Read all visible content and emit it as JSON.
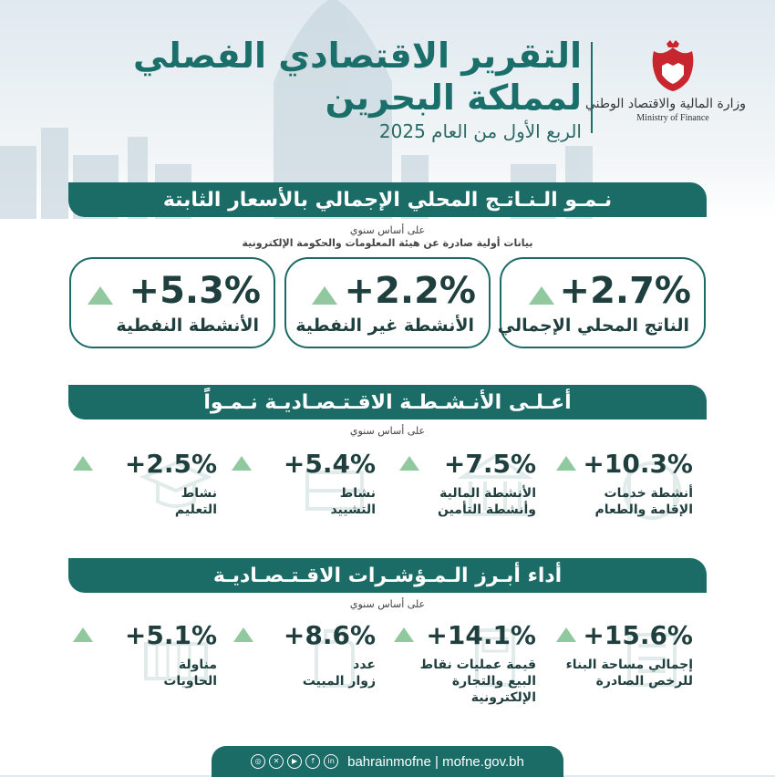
{
  "header": {
    "title_line1": "التقرير الاقتصادي الفصلي",
    "title_line2": "لمملكة البحرين",
    "subtitle": "الربع الأول من العام 2025",
    "ministry_ar": "وزارة المالية والاقتصاد الوطني",
    "ministry_en": "Ministry of Finance"
  },
  "gdp_section": {
    "title": "نـمـو الـنـاتـج المحلي الإجمالي بالأسعار الثابتة",
    "note1": "على أساس سنوي",
    "note2": "بيانات أولية صادرة عن هيئة المعلومات والحكومة الإلكترونية",
    "cards": [
      {
        "value": "+2.7%",
        "label": "الناتج المحلي الإجمالي"
      },
      {
        "value": "+2.2%",
        "label": "الأنشطة غير النفطية"
      },
      {
        "value": "+5.3%",
        "label": "الأنشطة النفطية"
      }
    ]
  },
  "activities_section": {
    "title": "أعـلـى الأنـشـطـة الاقـتـصـاديـة نـمـواً",
    "note": "على أساس سنوي",
    "items": [
      {
        "value": "+10.3%",
        "label_1": "أنشطة خدمات",
        "label_2": "الإقامة والطعام",
        "icon": "restaurant-icon"
      },
      {
        "value": "+7.5%",
        "label_1": "الأنشطة المالية",
        "label_2": "وأنشطة التأمين",
        "icon": "bank-icon"
      },
      {
        "value": "+5.4%",
        "label_1": "نشاط",
        "label_2": "التشييد",
        "icon": "construction-icon"
      },
      {
        "value": "+2.5%",
        "label_1": "نشاط",
        "label_2": "التعليم",
        "icon": "education-icon"
      }
    ]
  },
  "indicators_section": {
    "title": "أداء أبـرز الـمـؤشـرات الاقـتـصـاديـة",
    "note": "على أساس سنوي",
    "items": [
      {
        "value": "+15.6%",
        "label_1": "إجمالي مساحة البناء",
        "label_2": "للرخص الصادرة",
        "icon": "building-icon"
      },
      {
        "value": "+14.1%",
        "label_1": "قيمة عمليات نقاط",
        "label_2": "البيع والتجارة الإلكترونية",
        "icon": "pos-icon"
      },
      {
        "value": "+8.6%",
        "label_1": "عدد",
        "label_2": "زوار المبيت",
        "icon": "luggage-icon"
      },
      {
        "value": "+5.1%",
        "label_1": "مناولة",
        "label_2": "الحاويات",
        "icon": "container-icon"
      }
    ]
  },
  "footer": {
    "text": "bahrainmofne | mofne.gov.bh",
    "icons": [
      "linkedin-icon",
      "facebook-icon",
      "youtube-icon",
      "x-icon",
      "instagram-icon"
    ]
  },
  "colors": {
    "primary": "#1b6b67",
    "arrow": "#8fc99d",
    "text_dark": "#1f3e3e"
  }
}
